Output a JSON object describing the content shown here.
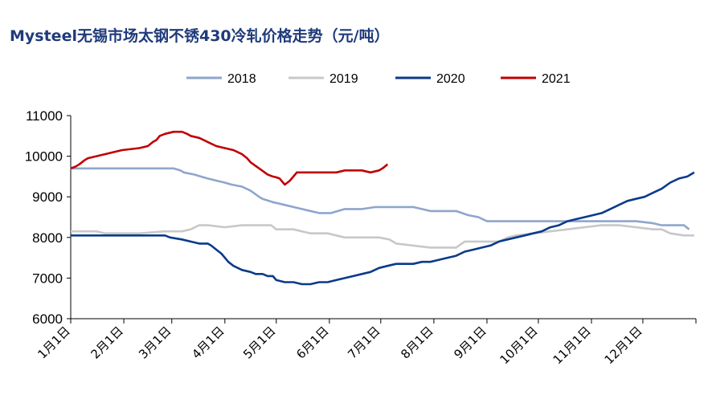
{
  "title": "Mysteel无锡市场太钢不锈430冷轧价格走势（元/吨）",
  "chart_data": {
    "type": "line",
    "title": "Mysteel无锡市场太钢不锈430冷轧价格走势（元/吨）",
    "xlabel": "",
    "ylabel": "",
    "ylim": [
      6000,
      11000
    ],
    "y_ticks": [
      "6000",
      "7000",
      "8000",
      "9000",
      "10000",
      "11000"
    ],
    "x_ticks": [
      "1月1日",
      "2月1日",
      "3月1日",
      "4月1日",
      "5月1日",
      "6月1日",
      "7月1日",
      "8月1日",
      "9月1日",
      "10月1日",
      "11月1日",
      "12月1日"
    ],
    "x_tick_days": [
      0,
      31,
      59,
      90,
      120,
      151,
      181,
      212,
      243,
      273,
      304,
      334
    ],
    "x_range": [
      0,
      365
    ],
    "grid": false,
    "legend_position": "top",
    "series": [
      {
        "name": "2018",
        "color": "#8ea6cb",
        "x": [
          0,
          30,
          60,
          64,
          66,
          72,
          80,
          85,
          90,
          94,
          100,
          105,
          110,
          112,
          118,
          125,
          130,
          135,
          145,
          150,
          152,
          160,
          170,
          178,
          182,
          190,
          200,
          210,
          215,
          220,
          225,
          232,
          238,
          243,
          250,
          260,
          270,
          280,
          290,
          300,
          310,
          320,
          330,
          340,
          345,
          350,
          358,
          361
        ],
        "y": [
          9700,
          9700,
          9700,
          9650,
          9600,
          9550,
          9450,
          9400,
          9350,
          9300,
          9250,
          9150,
          9000,
          8950,
          8870,
          8800,
          8750,
          8700,
          8600,
          8600,
          8600,
          8700,
          8700,
          8750,
          8750,
          8750,
          8750,
          8650,
          8650,
          8650,
          8650,
          8550,
          8500,
          8400,
          8400,
          8400,
          8400,
          8400,
          8400,
          8400,
          8400,
          8400,
          8400,
          8350,
          8300,
          8300,
          8300,
          8200
        ]
      },
      {
        "name": "2019",
        "color": "#c8c8c8",
        "x": [
          0,
          15,
          20,
          40,
          55,
          65,
          70,
          75,
          80,
          90,
          100,
          110,
          117,
          120,
          130,
          140,
          145,
          150,
          155,
          160,
          170,
          180,
          186,
          190,
          200,
          210,
          220,
          225,
          230,
          240,
          245,
          250,
          255,
          260,
          270,
          280,
          290,
          300,
          310,
          320,
          330,
          340,
          345,
          350,
          358,
          364
        ],
        "y": [
          8150,
          8150,
          8100,
          8100,
          8150,
          8150,
          8200,
          8300,
          8300,
          8250,
          8300,
          8300,
          8300,
          8200,
          8200,
          8100,
          8100,
          8100,
          8050,
          8000,
          8000,
          8000,
          7950,
          7850,
          7800,
          7750,
          7750,
          7750,
          7900,
          7900,
          7900,
          7900,
          8000,
          8050,
          8100,
          8150,
          8200,
          8250,
          8300,
          8300,
          8250,
          8200,
          8200,
          8100,
          8050,
          8050
        ]
      },
      {
        "name": "2020",
        "color": "#0b3a8a",
        "x": [
          0,
          10,
          20,
          30,
          40,
          50,
          55,
          58,
          65,
          70,
          75,
          80,
          82,
          85,
          88,
          92,
          95,
          100,
          105,
          108,
          112,
          115,
          118,
          120,
          125,
          130,
          135,
          140,
          145,
          150,
          155,
          160,
          165,
          170,
          175,
          180,
          185,
          190,
          195,
          200,
          205,
          210,
          215,
          220,
          225,
          230,
          235,
          240,
          245,
          250,
          255,
          260,
          265,
          270,
          275,
          280,
          285,
          290,
          295,
          300,
          305,
          310,
          315,
          320,
          325,
          330,
          335,
          340,
          345,
          350,
          355,
          360,
          364
        ],
        "y": [
          8050,
          8050,
          8050,
          8050,
          8050,
          8050,
          8050,
          8000,
          7950,
          7900,
          7850,
          7850,
          7800,
          7700,
          7600,
          7400,
          7300,
          7200,
          7150,
          7100,
          7100,
          7050,
          7050,
          6950,
          6900,
          6900,
          6850,
          6850,
          6900,
          6900,
          6950,
          7000,
          7050,
          7100,
          7150,
          7250,
          7300,
          7350,
          7350,
          7350,
          7400,
          7400,
          7450,
          7500,
          7550,
          7650,
          7700,
          7750,
          7800,
          7900,
          7950,
          8000,
          8050,
          8100,
          8150,
          8250,
          8300,
          8400,
          8450,
          8500,
          8550,
          8600,
          8700,
          8800,
          8900,
          8950,
          9000,
          9100,
          9200,
          9350,
          9450,
          9500,
          9600
        ]
      },
      {
        "name": "2021",
        "color": "#c00000",
        "x": [
          0,
          3,
          5,
          8,
          10,
          15,
          20,
          25,
          30,
          40,
          45,
          48,
          50,
          52,
          55,
          60,
          65,
          68,
          70,
          75,
          80,
          85,
          90,
          95,
          100,
          103,
          105,
          110,
          115,
          118,
          120,
          122,
          125,
          128,
          130,
          132,
          135,
          138,
          140,
          143,
          146,
          149,
          152,
          155,
          160,
          170,
          175,
          180,
          182,
          185
        ],
        "y": [
          9700,
          9750,
          9800,
          9900,
          9950,
          10000,
          10050,
          10100,
          10150,
          10200,
          10250,
          10350,
          10400,
          10500,
          10550,
          10600,
          10600,
          10550,
          10500,
          10450,
          10350,
          10250,
          10200,
          10150,
          10050,
          9950,
          9850,
          9700,
          9550,
          9500,
          9480,
          9450,
          9300,
          9400,
          9500,
          9600,
          9600,
          9600,
          9600,
          9600,
          9600,
          9600,
          9600,
          9600,
          9650,
          9650,
          9600,
          9650,
          9700,
          9800
        ]
      }
    ]
  }
}
